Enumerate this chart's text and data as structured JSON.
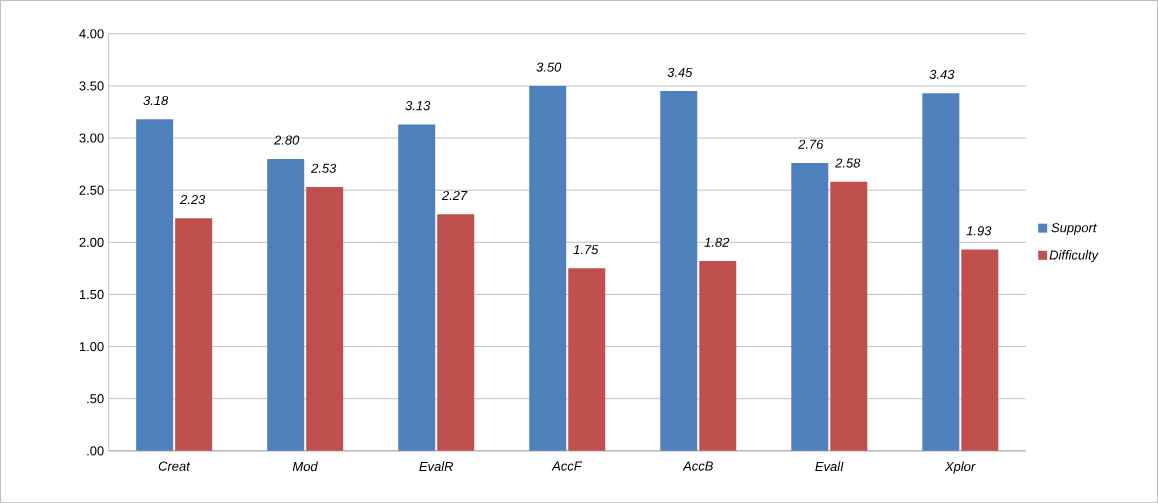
{
  "chart_data": {
    "type": "bar",
    "categories": [
      "*Creat*",
      "*Mod*",
      "*EvalR*",
      "*AccF*",
      "*AccB*",
      "*EvalI*",
      "*Xplor*"
    ],
    "series": [
      {
        "name": "*Support*",
        "color": "#4f81bd",
        "values": [
          3.18,
          2.8,
          3.13,
          3.5,
          3.45,
          2.76,
          3.43
        ],
        "value_labels": [
          "*3.18*",
          "*2.80*",
          "*3.13*",
          "*3.50*",
          "*3.45*",
          "*2.76*",
          "*3.43*"
        ]
      },
      {
        "name": "*Difficulty*",
        "color": "#c0504d",
        "values": [
          2.23,
          2.53,
          2.27,
          1.75,
          1.82,
          2.58,
          1.93
        ],
        "value_labels": [
          "*2.23*",
          "*2.53*",
          "*2.27*",
          "*1.75*",
          "*1.82*",
          "*2.58*",
          "*1.93*"
        ]
      }
    ],
    "ylim": [
      0,
      4
    ],
    "yticks": [
      {
        "value": 0,
        "label": ".00"
      },
      {
        "value": 0.5,
        "label": ".50"
      },
      {
        "value": 1,
        "label": "1.00"
      },
      {
        "value": 1.5,
        "label": "1.50"
      },
      {
        "value": 2,
        "label": "2.00"
      },
      {
        "value": 2.5,
        "label": "2.50"
      },
      {
        "value": 3,
        "label": "3.00"
      },
      {
        "value": 3.5,
        "label": "3.50"
      },
      {
        "value": 4,
        "label": "4.00"
      }
    ],
    "grid": "y",
    "legend": "right"
  }
}
